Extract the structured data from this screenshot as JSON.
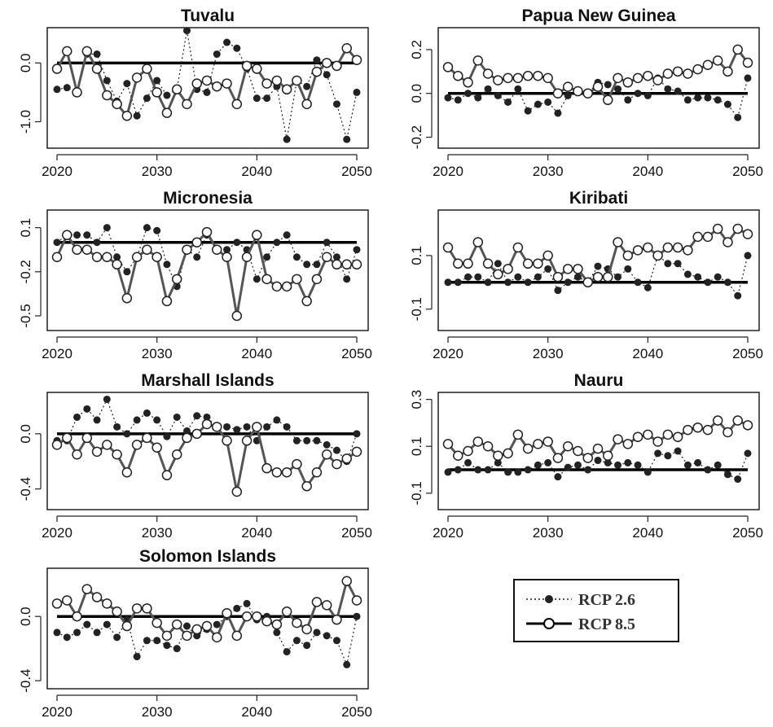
{
  "legend": {
    "entries": [
      {
        "name": "RCP 2.6",
        "style": "dotted-filled"
      },
      {
        "name": "RCP 8.5",
        "style": "solid-open"
      }
    ]
  },
  "colors": {
    "rcp26": "#222222",
    "rcp85": "#555555",
    "zero_line": "#000000"
  },
  "chart_data": [
    {
      "type": "line",
      "title": "Tuvalu",
      "x": [
        2020,
        2021,
        2022,
        2023,
        2024,
        2025,
        2026,
        2027,
        2028,
        2029,
        2030,
        2031,
        2032,
        2033,
        2034,
        2035,
        2036,
        2037,
        2038,
        2039,
        2040,
        2041,
        2042,
        2043,
        2044,
        2045,
        2046,
        2047,
        2048,
        2049,
        2050
      ],
      "xticks": [
        2020,
        2030,
        2040,
        2050
      ],
      "xticklabels": [
        "2020",
        "2030",
        "2040",
        "2050"
      ],
      "yticks": [
        0.0,
        -1.0
      ],
      "yticklabels": [
        "0.0",
        "-1.0"
      ],
      "ylim": [
        -1.45,
        0.6
      ],
      "series": [
        {
          "name": "RCP 2.6",
          "values": [
            -0.45,
            -0.42,
            -0.5,
            0.15,
            0.15,
            -0.3,
            -0.65,
            -0.35,
            -0.9,
            -0.6,
            -0.3,
            -0.55,
            -0.45,
            0.55,
            -0.45,
            -0.5,
            0.15,
            0.35,
            0.25,
            -0.1,
            -0.6,
            -0.6,
            -0.4,
            -1.3,
            -0.3,
            -0.4,
            0.05,
            -0.2,
            -0.7,
            -1.3,
            -0.5
          ]
        },
        {
          "name": "RCP 8.5",
          "values": [
            -0.1,
            0.2,
            -0.5,
            0.2,
            -0.1,
            -0.55,
            -0.7,
            -0.9,
            -0.25,
            -0.1,
            -0.5,
            -0.85,
            -0.45,
            -0.7,
            -0.35,
            -0.3,
            -0.4,
            -0.35,
            -0.7,
            -0.05,
            -0.1,
            -0.35,
            -0.3,
            -0.45,
            -0.3,
            -0.7,
            -0.15,
            0.0,
            -0.05,
            0.25,
            0.05
          ]
        }
      ]
    },
    {
      "type": "line",
      "title": "Papua New Guinea",
      "x": [
        2020,
        2021,
        2022,
        2023,
        2024,
        2025,
        2026,
        2027,
        2028,
        2029,
        2030,
        2031,
        2032,
        2033,
        2034,
        2035,
        2036,
        2037,
        2038,
        2039,
        2040,
        2041,
        2042,
        2043,
        2044,
        2045,
        2046,
        2047,
        2048,
        2049,
        2050
      ],
      "xticks": [
        2020,
        2030,
        2040,
        2050
      ],
      "xticklabels": [
        "2020",
        "2030",
        "2040",
        "2050"
      ],
      "yticks": [
        0.2,
        0.0,
        -0.2
      ],
      "yticklabels": [
        "0.2",
        "0.0",
        "-0.2"
      ],
      "ylim": [
        -0.25,
        0.3
      ],
      "series": [
        {
          "name": "RCP 2.6",
          "values": [
            -0.02,
            -0.03,
            0.0,
            -0.02,
            0.02,
            -0.01,
            -0.04,
            0.02,
            -0.08,
            -0.05,
            -0.04,
            -0.09,
            -0.01,
            0.01,
            0.0,
            0.05,
            0.04,
            0.02,
            -0.03,
            0.0,
            -0.01,
            0.07,
            0.02,
            0.01,
            -0.03,
            -0.02,
            -0.02,
            -0.03,
            -0.05,
            -0.11,
            0.07
          ]
        },
        {
          "name": "RCP 8.5",
          "values": [
            0.12,
            0.08,
            0.05,
            0.15,
            0.09,
            0.06,
            0.07,
            0.07,
            0.08,
            0.08,
            0.07,
            0.0,
            0.03,
            0.01,
            0.0,
            0.03,
            -0.03,
            0.07,
            0.05,
            0.07,
            0.08,
            0.06,
            0.09,
            0.1,
            0.09,
            0.11,
            0.13,
            0.15,
            0.1,
            0.2,
            0.14
          ]
        }
      ]
    },
    {
      "type": "line",
      "title": "Micronesia",
      "x": [
        2020,
        2021,
        2022,
        2023,
        2024,
        2025,
        2026,
        2027,
        2028,
        2029,
        2030,
        2031,
        2032,
        2033,
        2034,
        2035,
        2036,
        2037,
        2038,
        2039,
        2040,
        2041,
        2042,
        2043,
        2044,
        2045,
        2046,
        2047,
        2048,
        2049,
        2050
      ],
      "xticks": [
        2020,
        2030,
        2040,
        2050
      ],
      "xticklabels": [
        "2020",
        "2030",
        "2040",
        "2050"
      ],
      "yticks": [
        0.1,
        -0.2,
        -0.5
      ],
      "yticklabels": [
        "0.1",
        "-0.2",
        "-0.5"
      ],
      "ylim": [
        -0.6,
        0.22
      ],
      "series": [
        {
          "name": "RCP 2.6",
          "values": [
            0.0,
            0.05,
            0.05,
            0.05,
            0.0,
            0.1,
            -0.1,
            -0.2,
            -0.1,
            0.1,
            0.08,
            -0.15,
            -0.3,
            -0.05,
            -0.1,
            0.05,
            -0.05,
            -0.05,
            0.0,
            -0.05,
            -0.25,
            -0.1,
            0.0,
            0.05,
            -0.1,
            -0.15,
            -0.15,
            0.0,
            -0.1,
            -0.25,
            -0.05
          ]
        },
        {
          "name": "RCP 8.5",
          "values": [
            -0.1,
            0.05,
            -0.05,
            -0.05,
            -0.1,
            -0.1,
            -0.15,
            -0.38,
            -0.1,
            -0.05,
            -0.1,
            -0.4,
            -0.25,
            -0.05,
            0.0,
            0.07,
            -0.05,
            -0.1,
            -0.5,
            -0.1,
            0.05,
            -0.25,
            -0.3,
            -0.3,
            -0.25,
            -0.4,
            -0.25,
            -0.1,
            -0.15,
            -0.15,
            -0.15
          ]
        }
      ]
    },
    {
      "type": "line",
      "title": "Kiribati",
      "x": [
        2020,
        2021,
        2022,
        2023,
        2024,
        2025,
        2026,
        2027,
        2028,
        2029,
        2030,
        2031,
        2032,
        2033,
        2034,
        2035,
        2036,
        2037,
        2038,
        2039,
        2040,
        2041,
        2042,
        2043,
        2044,
        2045,
        2046,
        2047,
        2048,
        2049,
        2050
      ],
      "xticks": [
        2020,
        2030,
        2040,
        2050
      ],
      "xticklabels": [
        "2020",
        "2030",
        "2040",
        "2050"
      ],
      "yticks": [
        0.1,
        -0.1
      ],
      "yticklabels": [
        "0.1",
        "-0.1"
      ],
      "ylim": [
        -0.18,
        0.27
      ],
      "series": [
        {
          "name": "RCP 2.6",
          "values": [
            0.0,
            0.0,
            0.02,
            0.02,
            0.0,
            0.07,
            0.0,
            0.02,
            0.0,
            0.02,
            0.05,
            -0.03,
            0.0,
            0.02,
            0.0,
            0.06,
            0.05,
            0.02,
            0.05,
            0.0,
            -0.02,
            0.1,
            0.07,
            0.07,
            0.03,
            0.02,
            0.0,
            0.02,
            0.0,
            -0.05,
            0.1
          ]
        },
        {
          "name": "RCP 8.5",
          "values": [
            0.13,
            0.07,
            0.07,
            0.15,
            0.07,
            0.03,
            0.05,
            0.13,
            0.07,
            0.07,
            0.1,
            0.02,
            0.05,
            0.05,
            0.0,
            0.02,
            0.02,
            0.15,
            0.1,
            0.12,
            0.13,
            0.1,
            0.13,
            0.13,
            0.12,
            0.17,
            0.17,
            0.2,
            0.15,
            0.2,
            0.18
          ]
        }
      ]
    },
    {
      "type": "line",
      "title": "Marshall Islands",
      "x": [
        2020,
        2021,
        2022,
        2023,
        2024,
        2025,
        2026,
        2027,
        2028,
        2029,
        2030,
        2031,
        2032,
        2033,
        2034,
        2035,
        2036,
        2037,
        2038,
        2039,
        2040,
        2041,
        2042,
        2043,
        2044,
        2045,
        2046,
        2047,
        2048,
        2049,
        2050
      ],
      "xticks": [
        2020,
        2030,
        2040,
        2050
      ],
      "xticklabels": [
        "2020",
        "2030",
        "2040",
        "2050"
      ],
      "yticks": [
        0.0,
        -0.4
      ],
      "yticklabels": [
        "0.0",
        "-0.4"
      ],
      "ylim": [
        -0.55,
        0.3
      ],
      "series": [
        {
          "name": "RCP 2.6",
          "values": [
            -0.05,
            -0.05,
            0.12,
            0.18,
            0.1,
            0.25,
            0.05,
            0.0,
            0.1,
            0.15,
            0.1,
            -0.02,
            0.12,
            0.02,
            0.13,
            0.12,
            0.05,
            0.05,
            0.03,
            0.05,
            -0.05,
            0.05,
            0.1,
            0.05,
            -0.05,
            -0.05,
            -0.05,
            -0.08,
            -0.12,
            -0.2,
            0.0
          ]
        },
        {
          "name": "RCP 8.5",
          "values": [
            -0.08,
            -0.03,
            -0.15,
            -0.03,
            -0.13,
            -0.08,
            -0.15,
            -0.28,
            -0.08,
            -0.03,
            -0.1,
            -0.3,
            -0.15,
            -0.03,
            0.0,
            0.07,
            0.05,
            -0.05,
            -0.42,
            -0.05,
            0.05,
            -0.25,
            -0.28,
            -0.28,
            -0.22,
            -0.38,
            -0.28,
            -0.15,
            -0.22,
            -0.18,
            -0.13
          ]
        }
      ]
    },
    {
      "type": "line",
      "title": "Nauru",
      "x": [
        2020,
        2021,
        2022,
        2023,
        2024,
        2025,
        2026,
        2027,
        2028,
        2029,
        2030,
        2031,
        2032,
        2033,
        2034,
        2035,
        2036,
        2037,
        2038,
        2039,
        2040,
        2041,
        2042,
        2043,
        2044,
        2045,
        2046,
        2047,
        2048,
        2049,
        2050
      ],
      "xticks": [
        2020,
        2030,
        2040,
        2050
      ],
      "xticklabels": [
        "2020",
        "2030",
        "2040",
        "2050"
      ],
      "yticks": [
        0.3,
        0.1,
        -0.1
      ],
      "yticklabels": [
        "0.3",
        "0.1",
        "-0.1"
      ],
      "ylim": [
        -0.17,
        0.33
      ],
      "series": [
        {
          "name": "RCP 2.6",
          "values": [
            -0.01,
            0.0,
            0.03,
            0.0,
            0.0,
            0.03,
            -0.01,
            -0.01,
            0.0,
            0.02,
            0.03,
            -0.03,
            0.01,
            0.02,
            0.0,
            0.04,
            0.03,
            0.02,
            0.03,
            0.02,
            -0.01,
            0.07,
            0.06,
            0.08,
            0.02,
            0.03,
            0.0,
            0.02,
            -0.02,
            -0.04,
            0.07
          ]
        },
        {
          "name": "RCP 8.5",
          "values": [
            0.11,
            0.06,
            0.08,
            0.12,
            0.1,
            0.06,
            0.07,
            0.15,
            0.09,
            0.11,
            0.12,
            0.05,
            0.1,
            0.08,
            0.05,
            0.09,
            0.06,
            0.13,
            0.11,
            0.14,
            0.15,
            0.12,
            0.15,
            0.14,
            0.17,
            0.18,
            0.17,
            0.21,
            0.16,
            0.21,
            0.19
          ]
        }
      ]
    },
    {
      "type": "line",
      "title": "Solomon Islands",
      "x": [
        2020,
        2021,
        2022,
        2023,
        2024,
        2025,
        2026,
        2027,
        2028,
        2029,
        2030,
        2031,
        2032,
        2033,
        2034,
        2035,
        2036,
        2037,
        2038,
        2039,
        2040,
        2041,
        2042,
        2043,
        2044,
        2045,
        2046,
        2047,
        2048,
        2049,
        2050
      ],
      "xticks": [
        2020,
        2030,
        2040,
        2050
      ],
      "xticklabels": [
        "2020",
        "2030",
        "2040",
        "2050"
      ],
      "yticks": [
        0.0,
        -0.4
      ],
      "yticklabels": [
        "0.0",
        "-0.4"
      ],
      "ylim": [
        -0.45,
        0.3
      ],
      "series": [
        {
          "name": "RCP 2.6",
          "values": [
            -0.1,
            -0.13,
            -0.1,
            -0.05,
            -0.1,
            -0.05,
            -0.13,
            -0.02,
            -0.25,
            -0.15,
            -0.15,
            -0.18,
            -0.2,
            -0.06,
            -0.12,
            -0.08,
            -0.05,
            0.0,
            0.05,
            0.08,
            -0.02,
            0.0,
            -0.1,
            -0.22,
            -0.15,
            -0.18,
            -0.1,
            -0.12,
            -0.15,
            -0.3,
            0.0
          ]
        },
        {
          "name": "RCP 8.5",
          "values": [
            0.08,
            0.1,
            0.0,
            0.17,
            0.12,
            0.08,
            0.03,
            -0.06,
            0.05,
            0.05,
            -0.04,
            -0.12,
            -0.05,
            -0.12,
            -0.08,
            -0.06,
            -0.13,
            0.02,
            -0.12,
            0.0,
            0.0,
            -0.03,
            -0.05,
            0.03,
            -0.04,
            -0.08,
            0.09,
            0.07,
            -0.02,
            0.22,
            0.1
          ]
        }
      ]
    }
  ]
}
